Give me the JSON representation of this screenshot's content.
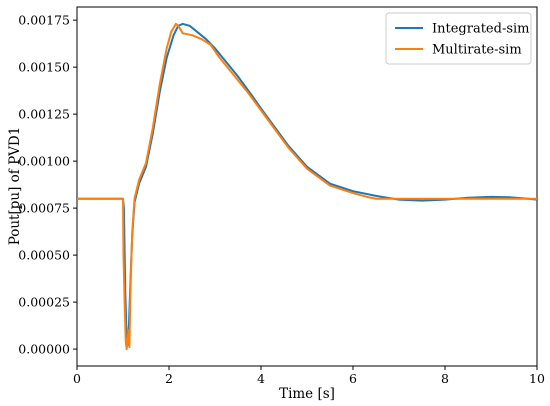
{
  "chart_data": {
    "type": "line",
    "xlabel": "Time [s]",
    "ylabel": "Pout[pu] of PVD1",
    "xlim": [
      0,
      10
    ],
    "ylim": [
      -9e-05,
      0.00182
    ],
    "x_ticks": [
      0,
      2,
      4,
      6,
      8,
      10
    ],
    "x_tick_labels": [
      "0",
      "2",
      "4",
      "6",
      "8",
      "10"
    ],
    "y_ticks": [
      0,
      0.00025,
      0.0005,
      0.00075,
      0.001,
      0.00125,
      0.0015,
      0.00175
    ],
    "y_tick_labels": [
      "0.00000",
      "0.00025",
      "0.00050",
      "0.00075",
      "0.00100",
      "0.00125",
      "0.00150",
      "0.00175"
    ],
    "grid": false,
    "legend_position": "top-right",
    "series": [
      {
        "name": "Integrated-sim",
        "color": "#1f77b4",
        "points": [
          [
            0,
            0.0008
          ],
          [
            1.0,
            0.0008
          ],
          [
            1.02,
            0.00075
          ],
          [
            1.05,
            0.0003
          ],
          [
            1.08,
            5e-05
          ],
          [
            1.1,
            2e-05
          ],
          [
            1.13,
            0.00013
          ],
          [
            1.16,
            0.00035
          ],
          [
            1.2,
            0.0006
          ],
          [
            1.25,
            0.00078
          ],
          [
            1.35,
            0.00088
          ],
          [
            1.5,
            0.00097
          ],
          [
            1.65,
            0.00115
          ],
          [
            1.8,
            0.00137
          ],
          [
            1.95,
            0.00155
          ],
          [
            2.1,
            0.00167
          ],
          [
            2.2,
            0.00172
          ],
          [
            2.3,
            0.00173
          ],
          [
            2.45,
            0.00172
          ],
          [
            2.6,
            0.00169
          ],
          [
            2.8,
            0.00165
          ],
          [
            3.0,
            0.0016
          ],
          [
            3.2,
            0.00154
          ],
          [
            3.5,
            0.00145
          ],
          [
            3.8,
            0.00135
          ],
          [
            4.0,
            0.00128
          ],
          [
            4.3,
            0.00118
          ],
          [
            4.6,
            0.00108
          ],
          [
            5.0,
            0.00097
          ],
          [
            5.5,
            0.00088
          ],
          [
            6.0,
            0.00084
          ],
          [
            6.5,
            0.000815
          ],
          [
            7.0,
            0.000795
          ],
          [
            7.5,
            0.00079
          ],
          [
            8.0,
            0.000795
          ],
          [
            8.5,
            0.000805
          ],
          [
            9.0,
            0.00081
          ],
          [
            9.4,
            0.000808
          ],
          [
            9.8,
            0.0008
          ],
          [
            10.0,
            0.000795
          ]
        ]
      },
      {
        "name": "Multirate-sim",
        "color": "#ff7f0e",
        "points": [
          [
            0,
            0.0008
          ],
          [
            1.0,
            0.0008
          ],
          [
            1.01,
            0.0005
          ],
          [
            1.04,
            0.0002
          ],
          [
            1.06,
            4e-05
          ],
          [
            1.08,
            0.0
          ],
          [
            1.1,
            5e-05
          ],
          [
            1.12,
            0.0001
          ],
          [
            1.14,
            1e-05
          ],
          [
            1.16,
            0.0003
          ],
          [
            1.2,
            0.00062
          ],
          [
            1.25,
            0.0008
          ],
          [
            1.35,
            0.0009
          ],
          [
            1.5,
            0.00099
          ],
          [
            1.65,
            0.00118
          ],
          [
            1.8,
            0.00141
          ],
          [
            1.95,
            0.0016
          ],
          [
            2.05,
            0.00169
          ],
          [
            2.15,
            0.00173
          ],
          [
            2.2,
            0.00172
          ],
          [
            2.3,
            0.00168
          ],
          [
            2.5,
            0.00167
          ],
          [
            2.7,
            0.00165
          ],
          [
            2.9,
            0.00162
          ],
          [
            3.1,
            0.00155
          ],
          [
            3.4,
            0.00146
          ],
          [
            3.7,
            0.00137
          ],
          [
            4.0,
            0.00127
          ],
          [
            4.3,
            0.00117
          ],
          [
            4.6,
            0.00107
          ],
          [
            5.0,
            0.00096
          ],
          [
            5.5,
            0.00087
          ],
          [
            6.0,
            0.00083
          ],
          [
            6.3,
            0.00081
          ],
          [
            6.5,
            0.0008
          ],
          [
            7.0,
            0.0008
          ],
          [
            8.0,
            0.0008
          ],
          [
            10.0,
            0.0008
          ]
        ]
      }
    ]
  }
}
